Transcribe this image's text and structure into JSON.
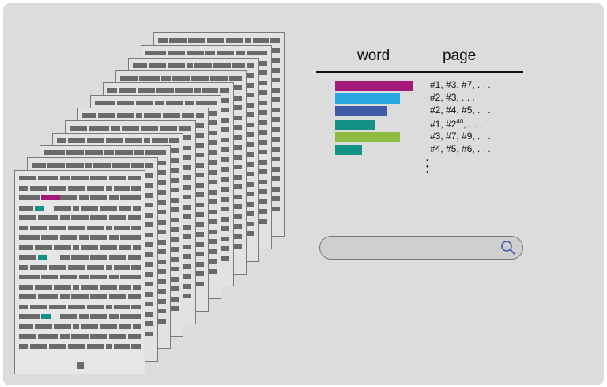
{
  "index": {
    "header": {
      "word": "word",
      "page": "page"
    },
    "entries": [
      {
        "color": "#a3197a",
        "value": 1.0,
        "pages": "#1, #3, #7, . . ."
      },
      {
        "color": "#29a6e0",
        "value": 0.84,
        "pages": "#2, #3, . . ."
      },
      {
        "color": "#3f5ba8",
        "value": 0.67,
        "pages": "#2, #4, #5, . . ."
      },
      {
        "color": "#139186",
        "value": 0.51,
        "pages_prefix": "#1, #2",
        "pages_sup": "40",
        "pages_suffix": ", . . ."
      },
      {
        "color": "#8dbb3f",
        "value": 0.84,
        "pages": "#3, #7, #9, . . ."
      },
      {
        "color": "#139186",
        "value": 0.35,
        "pages": "#4, #5, #6, . . ."
      }
    ],
    "ellipsis": "⋮"
  },
  "document": {
    "page_count": 12,
    "bar_color": "#6a6a6a",
    "highlights": [
      {
        "row": 2,
        "color": "#a3197a"
      },
      {
        "row": 3,
        "color": "#139186"
      },
      {
        "row": 8,
        "color": "#139186"
      },
      {
        "row": 14,
        "color": "#139186"
      }
    ]
  },
  "search": {
    "value": "",
    "icon": "search-icon",
    "accent": "#3f5ba8"
  }
}
